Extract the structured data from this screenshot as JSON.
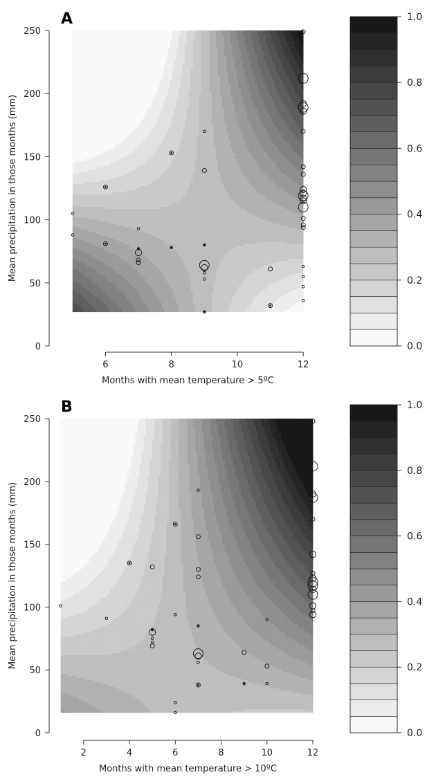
{
  "chart_data": [
    {
      "type": "contour",
      "panel_label": "A",
      "xlabel": "Months with mean temperature > 5ºC",
      "ylabel": "Mean precipitation in those months (mm)",
      "xlim": [
        4.5,
        12.5
      ],
      "ylim": [
        0,
        250
      ],
      "fill_extent": {
        "x": [
          5,
          12
        ],
        "y": [
          27,
          250
        ]
      },
      "xticks": [
        "6",
        "8",
        "10",
        "12"
      ],
      "xtick_values": [
        6,
        8,
        10,
        12
      ],
      "yticks": [
        "0",
        "50",
        "100",
        "150",
        "200",
        "250"
      ],
      "ytick_values": [
        0,
        50,
        100,
        150,
        200,
        250
      ],
      "surface": {
        "saddle_x": 9,
        "saddle_y": 95,
        "saddle_z": 0.27,
        "kx": 0.033,
        "ky": 0.003,
        "kxy": 0.0015
      },
      "colorbar": {
        "ticks": [
          "0.0",
          "0.2",
          "0.4",
          "0.6",
          "0.8",
          "1.0"
        ],
        "tick_values": [
          0,
          0.2,
          0.4,
          0.6,
          0.8,
          1.0
        ],
        "levels": 20
      },
      "points": [
        {
          "x": 5,
          "y": 105,
          "size": 1
        },
        {
          "x": 5,
          "y": 88,
          "size": 1
        },
        {
          "x": 6,
          "y": 126,
          "size": 2,
          "filled": true
        },
        {
          "x": 6,
          "y": 81,
          "size": 2,
          "filled": true
        },
        {
          "x": 7,
          "y": 93,
          "size": 1
        },
        {
          "x": 7,
          "y": 77,
          "size": 1,
          "filled": true
        },
        {
          "x": 7,
          "y": 74,
          "size": 3
        },
        {
          "x": 7,
          "y": 68,
          "size": 2
        },
        {
          "x": 7,
          "y": 66,
          "size": 2
        },
        {
          "x": 8,
          "y": 153,
          "size": 2,
          "filled": true
        },
        {
          "x": 8,
          "y": 78,
          "size": 1,
          "filled": true
        },
        {
          "x": 9,
          "y": 170,
          "size": 1
        },
        {
          "x": 9,
          "y": 139,
          "size": 2
        },
        {
          "x": 9,
          "y": 80,
          "size": 1,
          "filled": true
        },
        {
          "x": 9,
          "y": 64,
          "size": 4
        },
        {
          "x": 9,
          "y": 62,
          "size": 3
        },
        {
          "x": 9,
          "y": 58,
          "size": 1
        },
        {
          "x": 9,
          "y": 53,
          "size": 1
        },
        {
          "x": 9,
          "y": 27,
          "size": 1,
          "filled": true
        },
        {
          "x": 11,
          "y": 61,
          "size": 2
        },
        {
          "x": 11,
          "y": 32,
          "size": 2,
          "filled": true
        },
        {
          "x": 12,
          "y": 249,
          "size": 2
        },
        {
          "x": 12,
          "y": 212,
          "size": 4
        },
        {
          "x": 12,
          "y": 192,
          "size": 3
        },
        {
          "x": 12,
          "y": 189,
          "size": 4
        },
        {
          "x": 12,
          "y": 186,
          "size": 3
        },
        {
          "x": 12,
          "y": 170,
          "size": 2
        },
        {
          "x": 12,
          "y": 142,
          "size": 2
        },
        {
          "x": 12,
          "y": 136,
          "size": 2
        },
        {
          "x": 12,
          "y": 124,
          "size": 3
        },
        {
          "x": 12,
          "y": 121,
          "size": 3
        },
        {
          "x": 12,
          "y": 119,
          "size": 4
        },
        {
          "x": 12,
          "y": 117,
          "size": 3
        },
        {
          "x": 12,
          "y": 115,
          "size": 3
        },
        {
          "x": 12,
          "y": 110,
          "size": 4
        },
        {
          "x": 12,
          "y": 101,
          "size": 2
        },
        {
          "x": 12,
          "y": 96,
          "size": 2
        },
        {
          "x": 12,
          "y": 94,
          "size": 2
        },
        {
          "x": 12,
          "y": 63,
          "size": 1
        },
        {
          "x": 12,
          "y": 55,
          "size": 1
        },
        {
          "x": 12,
          "y": 47,
          "size": 1
        },
        {
          "x": 12,
          "y": 36,
          "size": 1
        }
      ]
    },
    {
      "type": "contour",
      "panel_label": "B",
      "xlabel": "Months with mean temperature > 10ºC",
      "ylabel": "Mean precipitation in those months (mm)",
      "xlim": [
        0.8,
        12.3
      ],
      "ylim": [
        0,
        250
      ],
      "fill_extent": {
        "x": [
          1,
          12
        ],
        "y": [
          16,
          250
        ]
      },
      "xticks": [
        "2",
        "4",
        "6",
        "8",
        "10",
        "12"
      ],
      "xtick_values": [
        2,
        4,
        6,
        8,
        10,
        12
      ],
      "yticks": [
        "0",
        "50",
        "100",
        "150",
        "200",
        "250"
      ],
      "ytick_values": [
        0,
        50,
        100,
        150,
        200,
        250
      ],
      "surface": {
        "saddle_x": 6,
        "saddle_y": 40,
        "saddle_z": 0.28,
        "kx": 0.012,
        "ky": 0.0026,
        "kxy": 0.0007
      },
      "colorbar": {
        "ticks": [
          "0.0",
          "0.2",
          "0.4",
          "0.6",
          "0.8",
          "1.0"
        ],
        "tick_values": [
          0,
          0.2,
          0.4,
          0.6,
          0.8,
          1.0
        ],
        "levels": 20
      },
      "points": [
        {
          "x": 1,
          "y": 101,
          "size": 1
        },
        {
          "x": 3,
          "y": 91,
          "size": 1
        },
        {
          "x": 4,
          "y": 135,
          "size": 2,
          "filled": true
        },
        {
          "x": 5,
          "y": 132,
          "size": 2
        },
        {
          "x": 5,
          "y": 82,
          "size": 1,
          "filled": true
        },
        {
          "x": 5,
          "y": 80,
          "size": 3
        },
        {
          "x": 5,
          "y": 75,
          "size": 1
        },
        {
          "x": 5,
          "y": 72,
          "size": 1
        },
        {
          "x": 5,
          "y": 69,
          "size": 2
        },
        {
          "x": 6,
          "y": 166,
          "size": 2,
          "filled": true
        },
        {
          "x": 6,
          "y": 94,
          "size": 1
        },
        {
          "x": 6,
          "y": 24,
          "size": 1
        },
        {
          "x": 6,
          "y": 16,
          "size": 1
        },
        {
          "x": 7,
          "y": 193,
          "size": 1
        },
        {
          "x": 7,
          "y": 156,
          "size": 2
        },
        {
          "x": 7,
          "y": 130,
          "size": 2
        },
        {
          "x": 7,
          "y": 124,
          "size": 2
        },
        {
          "x": 7,
          "y": 85,
          "size": 1,
          "filled": true
        },
        {
          "x": 7,
          "y": 63,
          "size": 4
        },
        {
          "x": 7,
          "y": 61,
          "size": 3
        },
        {
          "x": 7,
          "y": 56,
          "size": 1
        },
        {
          "x": 7,
          "y": 38,
          "size": 2,
          "filled": true
        },
        {
          "x": 9,
          "y": 64,
          "size": 2
        },
        {
          "x": 9,
          "y": 39,
          "size": 1,
          "filled": true
        },
        {
          "x": 10,
          "y": 90,
          "size": 1
        },
        {
          "x": 10,
          "y": 53,
          "size": 2
        },
        {
          "x": 10,
          "y": 39,
          "size": 1
        },
        {
          "x": 12,
          "y": 248,
          "size": 2
        },
        {
          "x": 12,
          "y": 212,
          "size": 4
        },
        {
          "x": 12,
          "y": 190,
          "size": 3
        },
        {
          "x": 12,
          "y": 187,
          "size": 4
        },
        {
          "x": 12,
          "y": 170,
          "size": 2
        },
        {
          "x": 12,
          "y": 142,
          "size": 3
        },
        {
          "x": 12,
          "y": 127,
          "size": 2
        },
        {
          "x": 12,
          "y": 123,
          "size": 3
        },
        {
          "x": 12,
          "y": 120,
          "size": 4
        },
        {
          "x": 12,
          "y": 117,
          "size": 4
        },
        {
          "x": 12,
          "y": 114,
          "size": 3
        },
        {
          "x": 12,
          "y": 110,
          "size": 4
        },
        {
          "x": 12,
          "y": 101,
          "size": 3
        },
        {
          "x": 12,
          "y": 97,
          "size": 2
        },
        {
          "x": 12,
          "y": 94,
          "size": 3
        }
      ]
    }
  ]
}
